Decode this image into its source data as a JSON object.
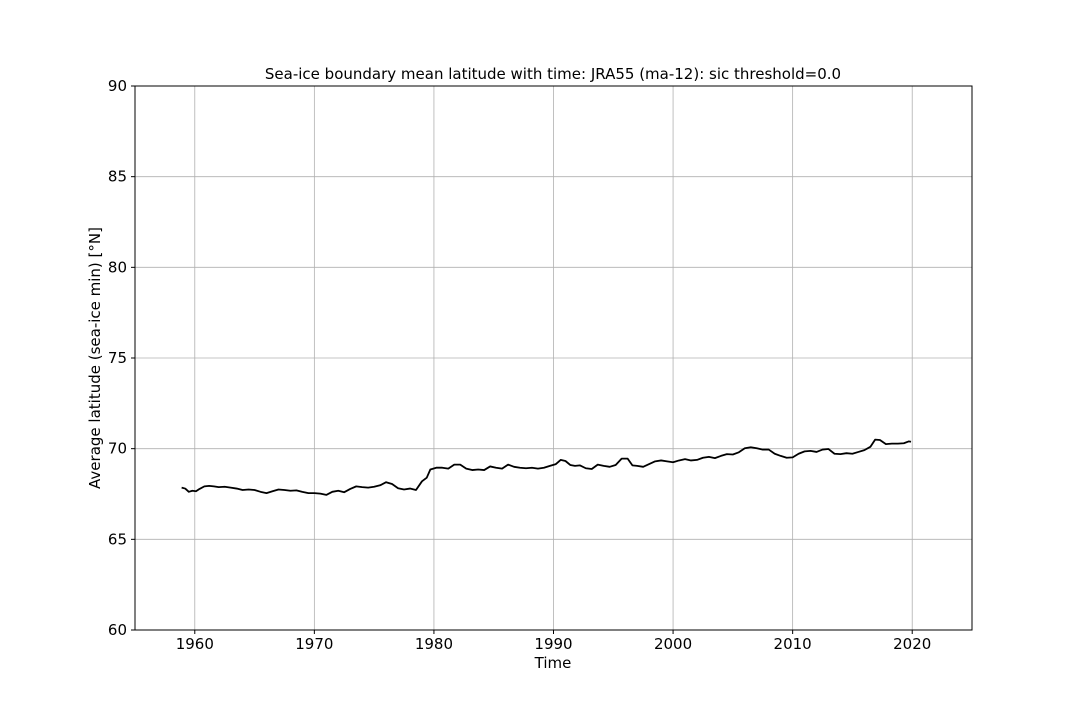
{
  "chart_data": {
    "type": "line",
    "title": "Sea-ice boundary mean latitude with time: JRA55 (ma-12): sic threshold=0.0",
    "xlabel": "Time",
    "ylabel": "Average latitude (sea-ice min) [°N]",
    "xlim": [
      1955,
      2025
    ],
    "ylim": [
      60,
      90
    ],
    "x_ticks": [
      1960,
      1970,
      1980,
      1990,
      2000,
      2010,
      2020
    ],
    "y_ticks": [
      60,
      65,
      70,
      75,
      80,
      85,
      90
    ],
    "grid": true,
    "series": [
      {
        "color": "#000000",
        "points": [
          [
            1958.9,
            67.85
          ],
          [
            1959.2,
            67.8
          ],
          [
            1959.5,
            67.62
          ],
          [
            1959.8,
            67.68
          ],
          [
            1960.1,
            67.65
          ],
          [
            1960.4,
            67.78
          ],
          [
            1960.8,
            67.92
          ],
          [
            1961.2,
            67.95
          ],
          [
            1961.6,
            67.92
          ],
          [
            1962.0,
            67.88
          ],
          [
            1962.5,
            67.9
          ],
          [
            1963.0,
            67.85
          ],
          [
            1963.5,
            67.8
          ],
          [
            1964.0,
            67.72
          ],
          [
            1964.5,
            67.75
          ],
          [
            1965.0,
            67.72
          ],
          [
            1965.5,
            67.62
          ],
          [
            1966.0,
            67.55
          ],
          [
            1966.5,
            67.65
          ],
          [
            1967.0,
            67.75
          ],
          [
            1967.5,
            67.72
          ],
          [
            1968.0,
            67.68
          ],
          [
            1968.5,
            67.7
          ],
          [
            1969.0,
            67.62
          ],
          [
            1969.5,
            67.55
          ],
          [
            1970.0,
            67.55
          ],
          [
            1970.5,
            67.52
          ],
          [
            1971.0,
            67.45
          ],
          [
            1971.5,
            67.62
          ],
          [
            1972.0,
            67.68
          ],
          [
            1972.5,
            67.6
          ],
          [
            1973.0,
            67.78
          ],
          [
            1973.5,
            67.92
          ],
          [
            1974.0,
            67.88
          ],
          [
            1974.5,
            67.85
          ],
          [
            1975.0,
            67.9
          ],
          [
            1975.5,
            67.98
          ],
          [
            1976.0,
            68.15
          ],
          [
            1976.5,
            68.05
          ],
          [
            1977.0,
            67.82
          ],
          [
            1977.5,
            67.75
          ],
          [
            1978.0,
            67.8
          ],
          [
            1978.5,
            67.72
          ],
          [
            1979.0,
            68.2
          ],
          [
            1979.4,
            68.4
          ],
          [
            1979.7,
            68.85
          ],
          [
            1980.2,
            68.95
          ],
          [
            1980.7,
            68.95
          ],
          [
            1981.2,
            68.9
          ],
          [
            1981.7,
            69.12
          ],
          [
            1982.2,
            69.12
          ],
          [
            1982.7,
            68.9
          ],
          [
            1983.2,
            68.82
          ],
          [
            1983.7,
            68.85
          ],
          [
            1984.2,
            68.82
          ],
          [
            1984.7,
            69.02
          ],
          [
            1985.2,
            68.95
          ],
          [
            1985.7,
            68.9
          ],
          [
            1986.2,
            69.12
          ],
          [
            1986.7,
            69.0
          ],
          [
            1987.2,
            68.95
          ],
          [
            1987.7,
            68.92
          ],
          [
            1988.2,
            68.95
          ],
          [
            1988.7,
            68.9
          ],
          [
            1989.2,
            68.95
          ],
          [
            1989.7,
            69.05
          ],
          [
            1990.2,
            69.15
          ],
          [
            1990.6,
            69.38
          ],
          [
            1991.0,
            69.32
          ],
          [
            1991.4,
            69.1
          ],
          [
            1991.8,
            69.05
          ],
          [
            1992.2,
            69.08
          ],
          [
            1992.7,
            68.92
          ],
          [
            1993.2,
            68.88
          ],
          [
            1993.7,
            69.12
          ],
          [
            1994.2,
            69.05
          ],
          [
            1994.7,
            69.0
          ],
          [
            1995.2,
            69.1
          ],
          [
            1995.7,
            69.45
          ],
          [
            1996.2,
            69.45
          ],
          [
            1996.6,
            69.08
          ],
          [
            1997.0,
            69.05
          ],
          [
            1997.5,
            69.0
          ],
          [
            1998.0,
            69.15
          ],
          [
            1998.5,
            69.3
          ],
          [
            1999.0,
            69.35
          ],
          [
            1999.5,
            69.3
          ],
          [
            2000.0,
            69.25
          ],
          [
            2000.5,
            69.35
          ],
          [
            2001.0,
            69.42
          ],
          [
            2001.5,
            69.35
          ],
          [
            2002.0,
            69.38
          ],
          [
            2002.5,
            69.5
          ],
          [
            2003.0,
            69.55
          ],
          [
            2003.5,
            69.48
          ],
          [
            2004.0,
            69.6
          ],
          [
            2004.5,
            69.7
          ],
          [
            2005.0,
            69.68
          ],
          [
            2005.5,
            69.8
          ],
          [
            2006.0,
            70.02
          ],
          [
            2006.5,
            70.08
          ],
          [
            2007.0,
            70.02
          ],
          [
            2007.5,
            69.95
          ],
          [
            2008.0,
            69.95
          ],
          [
            2008.5,
            69.72
          ],
          [
            2009.0,
            69.6
          ],
          [
            2009.5,
            69.5
          ],
          [
            2010.0,
            69.52
          ],
          [
            2010.5,
            69.72
          ],
          [
            2011.0,
            69.85
          ],
          [
            2011.5,
            69.88
          ],
          [
            2012.0,
            69.82
          ],
          [
            2012.5,
            69.95
          ],
          [
            2013.0,
            69.98
          ],
          [
            2013.5,
            69.72
          ],
          [
            2014.0,
            69.7
          ],
          [
            2014.5,
            69.75
          ],
          [
            2015.0,
            69.72
          ],
          [
            2015.5,
            69.82
          ],
          [
            2016.0,
            69.92
          ],
          [
            2016.5,
            70.1
          ],
          [
            2016.9,
            70.5
          ],
          [
            2017.3,
            70.48
          ],
          [
            2017.8,
            70.25
          ],
          [
            2018.3,
            70.28
          ],
          [
            2018.8,
            70.28
          ],
          [
            2019.3,
            70.3
          ],
          [
            2019.7,
            70.4
          ],
          [
            2019.9,
            70.38
          ]
        ]
      }
    ]
  }
}
